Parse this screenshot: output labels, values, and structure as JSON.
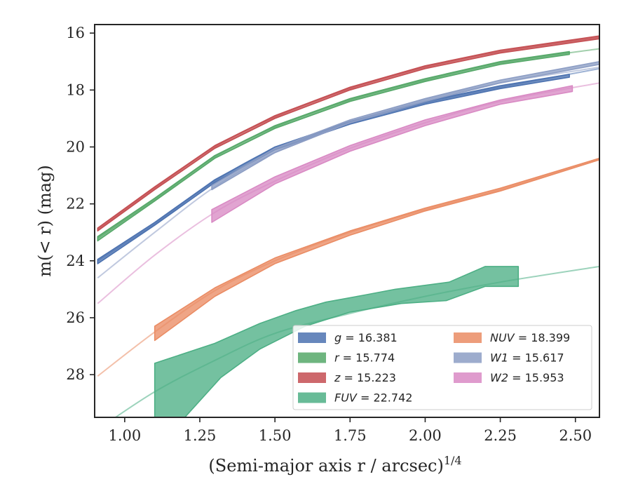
{
  "chart_data": {
    "type": "line",
    "xlabel": "(Semi-major axis r / arcsec)",
    "xlabel_exponent": "1/4",
    "ylabel": "m(< r) (mag)",
    "xlim": [
      0.9,
      2.58
    ],
    "ylim": [
      29.5,
      15.7
    ],
    "y_inverted": true,
    "xticks": [
      1.0,
      1.25,
      1.5,
      1.75,
      2.0,
      2.25,
      2.5
    ],
    "xtick_labels": [
      "1.00",
      "1.25",
      "1.50",
      "1.75",
      "2.00",
      "2.25",
      "2.50"
    ],
    "yticks": [
      16,
      18,
      20,
      22,
      24,
      26,
      28
    ],
    "ytick_labels": [
      "16",
      "18",
      "20",
      "22",
      "24",
      "26",
      "28"
    ],
    "grid": false,
    "legend_position": "lower-right",
    "series": [
      {
        "name": "g = 16.381",
        "band": "g",
        "total_mag": "16.381",
        "color": "#4c72b0",
        "model": [
          [
            0.91,
            24.0
          ],
          [
            1.1,
            22.7
          ],
          [
            1.3,
            21.2
          ],
          [
            1.5,
            20.05
          ],
          [
            1.75,
            19.15
          ],
          [
            2.0,
            18.45
          ],
          [
            2.25,
            17.9
          ],
          [
            2.58,
            17.25
          ]
        ],
        "data_upper": [
          [
            0.91,
            23.95
          ],
          [
            1.1,
            22.65
          ],
          [
            1.3,
            21.15
          ],
          [
            1.5,
            20.0
          ],
          [
            1.75,
            19.1
          ],
          [
            2.0,
            18.4
          ],
          [
            2.25,
            17.85
          ],
          [
            2.48,
            17.45
          ]
        ],
        "data_lower": [
          [
            0.91,
            24.1
          ],
          [
            1.1,
            22.75
          ],
          [
            1.3,
            21.25
          ],
          [
            1.5,
            20.1
          ],
          [
            1.75,
            19.2
          ],
          [
            2.0,
            18.5
          ],
          [
            2.25,
            17.95
          ],
          [
            2.48,
            17.55
          ]
        ]
      },
      {
        "name": "r = 15.774",
        "band": "r",
        "total_mag": "15.774",
        "color": "#55a868",
        "model": [
          [
            0.91,
            23.2
          ],
          [
            1.1,
            21.85
          ],
          [
            1.3,
            20.35
          ],
          [
            1.5,
            19.3
          ],
          [
            1.75,
            18.35
          ],
          [
            2.0,
            17.65
          ],
          [
            2.25,
            17.05
          ],
          [
            2.58,
            16.55
          ]
        ],
        "data_upper": [
          [
            0.91,
            23.15
          ],
          [
            1.1,
            21.8
          ],
          [
            1.3,
            20.3
          ],
          [
            1.5,
            19.25
          ],
          [
            1.75,
            18.3
          ],
          [
            2.0,
            17.6
          ],
          [
            2.25,
            17.0
          ],
          [
            2.48,
            16.65
          ]
        ],
        "data_lower": [
          [
            0.91,
            23.3
          ],
          [
            1.1,
            21.9
          ],
          [
            1.3,
            20.4
          ],
          [
            1.5,
            19.35
          ],
          [
            1.75,
            18.4
          ],
          [
            2.0,
            17.7
          ],
          [
            2.25,
            17.1
          ],
          [
            2.48,
            16.75
          ]
        ]
      },
      {
        "name": "z = 15.223",
        "band": "z",
        "total_mag": "15.223",
        "color": "#c44e52",
        "model": [
          [
            0.91,
            22.9
          ],
          [
            1.1,
            21.45
          ],
          [
            1.3,
            20.0
          ],
          [
            1.5,
            18.95
          ],
          [
            1.75,
            17.95
          ],
          [
            2.0,
            17.2
          ],
          [
            2.25,
            16.65
          ],
          [
            2.58,
            16.15
          ]
        ],
        "data_upper": [
          [
            0.91,
            22.85
          ],
          [
            1.1,
            21.4
          ],
          [
            1.3,
            19.95
          ],
          [
            1.5,
            18.9
          ],
          [
            1.75,
            17.9
          ],
          [
            2.0,
            17.15
          ],
          [
            2.25,
            16.6
          ],
          [
            2.58,
            16.1
          ]
        ],
        "data_lower": [
          [
            0.91,
            22.95
          ],
          [
            1.1,
            21.5
          ],
          [
            1.3,
            20.05
          ],
          [
            1.5,
            19.0
          ],
          [
            1.75,
            18.0
          ],
          [
            2.0,
            17.25
          ],
          [
            2.25,
            16.7
          ],
          [
            2.58,
            16.2
          ]
        ]
      },
      {
        "name": "FUV = 22.742",
        "band": "FUV",
        "total_mag": "22.742",
        "color": "#4daf85",
        "model": [
          [
            0.9,
            30.0
          ],
          [
            1.1,
            28.6
          ],
          [
            1.3,
            27.5
          ],
          [
            1.5,
            26.55
          ],
          [
            1.75,
            25.85
          ],
          [
            2.0,
            25.25
          ],
          [
            2.25,
            24.75
          ],
          [
            2.58,
            24.2
          ]
        ],
        "data_upper": [
          [
            1.1,
            27.6
          ],
          [
            1.3,
            26.9
          ],
          [
            1.45,
            26.2
          ],
          [
            1.57,
            25.75
          ],
          [
            1.67,
            25.45
          ],
          [
            1.8,
            25.2
          ],
          [
            1.9,
            25.0
          ],
          [
            2.08,
            24.75
          ],
          [
            2.2,
            24.2
          ],
          [
            2.31,
            24.2
          ]
        ],
        "data_lower": [
          [
            1.1,
            29.5
          ],
          [
            1.2,
            29.5
          ],
          [
            1.32,
            28.1
          ],
          [
            1.45,
            27.1
          ],
          [
            1.6,
            26.3
          ],
          [
            1.75,
            25.8
          ],
          [
            1.92,
            25.5
          ],
          [
            2.07,
            25.4
          ],
          [
            2.2,
            24.9
          ],
          [
            2.31,
            24.9
          ]
        ]
      },
      {
        "name": "NUV = 18.399",
        "band": "NUV",
        "total_mag": "18.399",
        "color": "#ea8c64",
        "model": [
          [
            0.91,
            28.05
          ],
          [
            1.1,
            26.5
          ],
          [
            1.3,
            25.05
          ],
          [
            1.5,
            24.0
          ],
          [
            1.75,
            23.0
          ],
          [
            2.0,
            22.2
          ],
          [
            2.25,
            21.5
          ],
          [
            2.58,
            20.4
          ]
        ],
        "data_upper": [
          [
            1.1,
            26.3
          ],
          [
            1.3,
            24.95
          ],
          [
            1.5,
            23.9
          ],
          [
            1.75,
            22.95
          ],
          [
            2.0,
            22.15
          ],
          [
            2.25,
            21.45
          ],
          [
            2.58,
            20.4
          ]
        ],
        "data_lower": [
          [
            1.1,
            26.8
          ],
          [
            1.3,
            25.25
          ],
          [
            1.5,
            24.1
          ],
          [
            1.75,
            23.1
          ],
          [
            2.0,
            22.25
          ],
          [
            2.25,
            21.55
          ],
          [
            2.58,
            20.45
          ]
        ]
      },
      {
        "name": "W1 = 15.617",
        "band": "W1",
        "total_mag": "15.617",
        "color": "#8c9dc4",
        "model": [
          [
            0.91,
            24.6
          ],
          [
            1.1,
            23.0
          ],
          [
            1.3,
            21.4
          ],
          [
            1.5,
            20.2
          ],
          [
            1.75,
            19.15
          ],
          [
            2.0,
            18.35
          ],
          [
            2.25,
            17.75
          ],
          [
            2.58,
            17.2
          ]
        ],
        "data_upper": [
          [
            1.29,
            21.35
          ],
          [
            1.5,
            20.05
          ],
          [
            1.75,
            19.05
          ],
          [
            2.0,
            18.3
          ],
          [
            2.25,
            17.65
          ],
          [
            2.58,
            17.0
          ]
        ],
        "data_lower": [
          [
            1.29,
            21.5
          ],
          [
            1.5,
            20.2
          ],
          [
            1.75,
            19.15
          ],
          [
            2.0,
            18.4
          ],
          [
            2.25,
            17.75
          ],
          [
            2.58,
            17.1
          ]
        ]
      },
      {
        "name": "W2 = 15.953",
        "band": "W2",
        "total_mag": "15.953",
        "color": "#d98ac4",
        "model": [
          [
            0.91,
            25.5
          ],
          [
            1.1,
            23.8
          ],
          [
            1.3,
            22.3
          ],
          [
            1.5,
            21.2
          ],
          [
            1.75,
            20.05
          ],
          [
            2.0,
            19.15
          ],
          [
            2.25,
            18.4
          ],
          [
            2.58,
            17.75
          ]
        ],
        "data_upper": [
          [
            1.29,
            22.2
          ],
          [
            1.5,
            21.05
          ],
          [
            1.75,
            19.95
          ],
          [
            2.0,
            19.05
          ],
          [
            2.25,
            18.35
          ],
          [
            2.49,
            17.85
          ]
        ],
        "data_lower": [
          [
            1.29,
            22.65
          ],
          [
            1.5,
            21.3
          ],
          [
            1.75,
            20.15
          ],
          [
            2.0,
            19.25
          ],
          [
            2.25,
            18.5
          ],
          [
            2.49,
            18.05
          ]
        ]
      }
    ]
  }
}
